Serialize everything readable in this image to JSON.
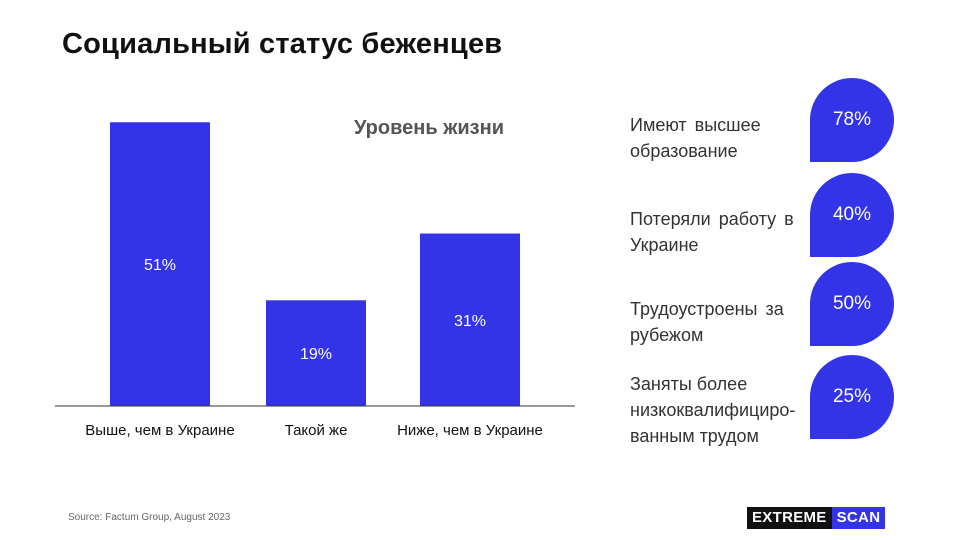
{
  "page": {
    "title": "Социальный статус беженцев",
    "source": "Source: Factum Group, August 2023",
    "logo": {
      "part1": "EXTREME",
      "part2": "SCAN"
    }
  },
  "colors": {
    "accent": "#3333e8",
    "text": "#111111",
    "muted": "#666666"
  },
  "chart_data": {
    "type": "bar",
    "title": "Уровень жизни",
    "categories": [
      "Выше, чем в Украине",
      "Такой же",
      "Ниже, чем в Украине"
    ],
    "values": [
      51,
      19,
      31
    ],
    "value_labels": [
      "51%",
      "19%",
      "31%"
    ],
    "ylim": [
      0,
      55
    ],
    "grid": false,
    "xlabel": "",
    "ylabel": ""
  },
  "stats": [
    {
      "label": "Имеют высшее образование",
      "value": "78%"
    },
    {
      "label": "Потеряли работу в Украине",
      "value": "40%"
    },
    {
      "label": "Трудоустроены за рубежом",
      "value": "50%"
    },
    {
      "label": "Заняты более низкоквалифициро-ванным трудом",
      "value": "25%"
    }
  ]
}
